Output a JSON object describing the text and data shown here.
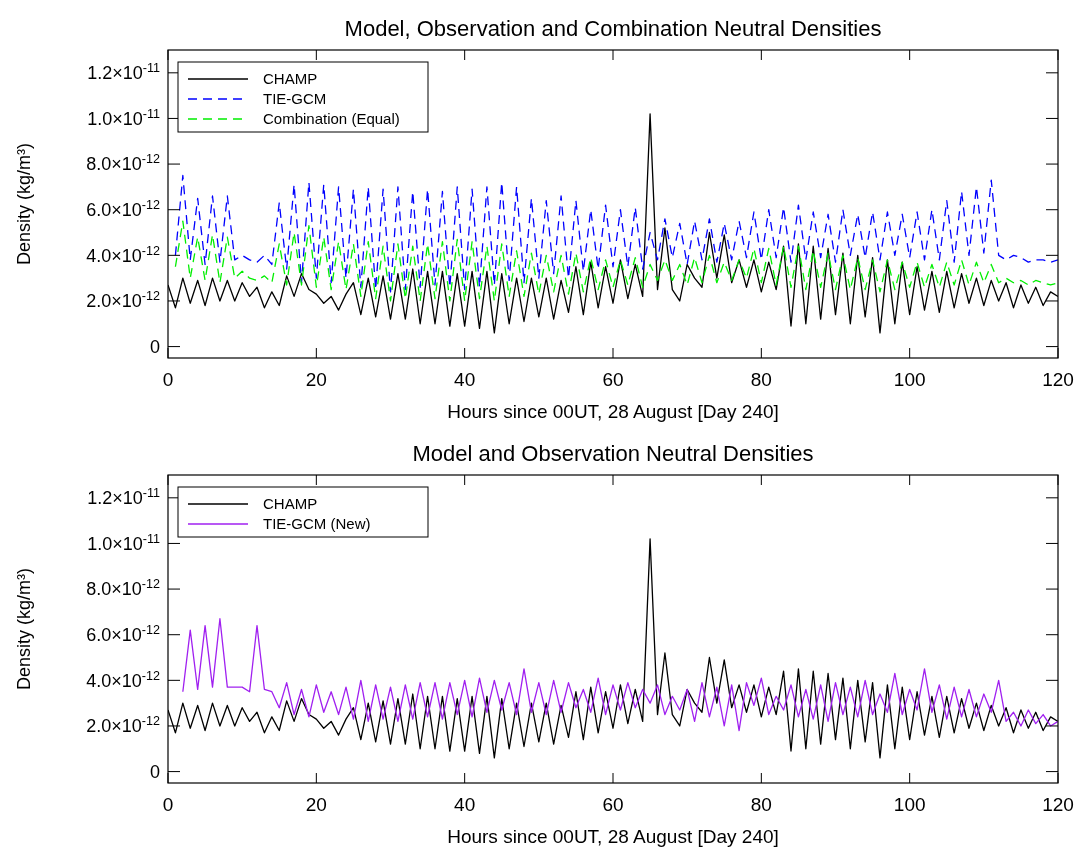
{
  "chart_data": [
    {
      "type": "line",
      "title": "Model, Observation and Combination Neutral Densities",
      "xlabel": "Hours since 00UT, 28 August [Day 240]",
      "ylabel": "Density (kg/m³)",
      "legend": "top left",
      "grid": false,
      "xlim": [
        0,
        120
      ],
      "xticks": [
        0,
        20,
        40,
        60,
        80,
        100,
        120
      ],
      "ylim": [
        -5e-13,
        1.3e-11
      ],
      "yticks": [
        {
          "value": 0,
          "label": "0"
        },
        {
          "value": 2e-12,
          "label": "2.0×10$^{-12}$"
        },
        {
          "value": 4e-12,
          "label": "4.0×10$^{-12}$"
        },
        {
          "value": 6e-12,
          "label": "6.0×10$^{-12}$"
        },
        {
          "value": 8e-12,
          "label": "8.0×10$^{-12}$"
        },
        {
          "value": 1e-11,
          "label": "1.0×10$^{-11}$"
        },
        {
          "value": 1.2e-11,
          "label": "1.2×10$^{-11}$"
        }
      ],
      "x": [
        0,
        1,
        2,
        3,
        4,
        5,
        6,
        7,
        8,
        9,
        10,
        11,
        12,
        13,
        14,
        15,
        16,
        17,
        18,
        19,
        20,
        21,
        22,
        23,
        24,
        25,
        26,
        27,
        28,
        29,
        30,
        31,
        32,
        33,
        34,
        35,
        36,
        37,
        38,
        39,
        40,
        41,
        42,
        43,
        44,
        45,
        46,
        47,
        48,
        49,
        50,
        51,
        52,
        53,
        54,
        55,
        56,
        57,
        58,
        59,
        60,
        61,
        62,
        63,
        64,
        65,
        66,
        67,
        68,
        69,
        70,
        71,
        72,
        73,
        74,
        75,
        76,
        77,
        78,
        79,
        80,
        81,
        82,
        83,
        84,
        85,
        86,
        87,
        88,
        89,
        90,
        91,
        92,
        93,
        94,
        95,
        96,
        97,
        98,
        99,
        100,
        101,
        102,
        103,
        104,
        105,
        106,
        107,
        108,
        109,
        110,
        111,
        112,
        113,
        114,
        115,
        116,
        117,
        118,
        119,
        120
      ],
      "series": [
        {
          "name": "CHAMP",
          "color": "#000000",
          "line_style": "solid",
          "values": [
            2.7e-12,
            1.7e-12,
            3e-12,
            1.9e-12,
            2.9e-12,
            1.8e-12,
            3e-12,
            2e-12,
            2.9e-12,
            2e-12,
            2.8e-12,
            2.2e-12,
            2.6e-12,
            1.7e-12,
            2.4e-12,
            1.8e-12,
            3.1e-12,
            2.2e-12,
            3.2e-12,
            2.5e-12,
            2.3e-12,
            1.9e-12,
            2.2e-12,
            1.6e-12,
            2.3e-12,
            2.8e-12,
            1.4e-12,
            3e-12,
            1.3e-12,
            3.1e-12,
            1.2e-12,
            3.2e-12,
            1.2e-12,
            3.4e-12,
            1e-12,
            3.3e-12,
            1e-12,
            3.3e-12,
            9e-13,
            3.2e-12,
            9e-13,
            3.3e-12,
            8e-13,
            3.3e-12,
            6e-13,
            3.2e-12,
            1e-12,
            3e-12,
            1.1e-12,
            3e-12,
            1.3e-12,
            3e-12,
            1.2e-12,
            2.9e-12,
            1.5e-12,
            3.5e-12,
            1.4e-12,
            3.7e-12,
            1.7e-12,
            3.5e-12,
            1.9e-12,
            3.8e-12,
            2.1e-12,
            3.6e-12,
            2.2e-12,
            1.02e-11,
            2.5e-12,
            5.2e-12,
            2.5e-12,
            2e-12,
            3.6e-12,
            3e-12,
            2.6e-12,
            5e-12,
            3e-12,
            4.9e-12,
            2.8e-12,
            3.8e-12,
            2.6e-12,
            3.8e-12,
            2.4e-12,
            3.7e-12,
            2.5e-12,
            4.4e-12,
            9e-13,
            4.5e-12,
            1e-12,
            4.4e-12,
            1.2e-12,
            4.3e-12,
            1.4e-12,
            4.1e-12,
            1e-12,
            4e-12,
            1.3e-12,
            3.9e-12,
            6e-13,
            3.8e-12,
            1e-12,
            3.7e-12,
            1.4e-12,
            3.5e-12,
            1.6e-12,
            3.3e-12,
            1.5e-12,
            3.3e-12,
            1.7e-12,
            3.2e-12,
            1.9e-12,
            3e-12,
            1.8e-12,
            2.9e-12,
            2e-12,
            2.8e-12,
            1.7e-12,
            2.7e-12,
            1.9e-12,
            2.6e-12,
            1.8e-12,
            2.4e-12,
            2.2e-12
          ]
        },
        {
          "name": "TIE-GCM",
          "color": "#0000ff",
          "line_style": "dashed",
          "values": [
            null,
            4e-12,
            7.5e-12,
            3.8e-12,
            6.5e-12,
            3.6e-12,
            6.6e-12,
            3.7e-12,
            6.6e-12,
            3.8e-12,
            4e-12,
            3.8e-12,
            3.7e-12,
            4e-12,
            3.6e-12,
            6.3e-12,
            3.4e-12,
            7.1e-12,
            2.8e-12,
            7.2e-12,
            3e-12,
            7.1e-12,
            2.8e-12,
            7e-12,
            3e-12,
            6.9e-12,
            2.6e-12,
            7e-12,
            2.5e-12,
            6.9e-12,
            2.4e-12,
            7e-12,
            2.5e-12,
            6.8e-12,
            2.6e-12,
            6.9e-12,
            2.7e-12,
            6.8e-12,
            2.6e-12,
            7e-12,
            2.5e-12,
            6.9e-12,
            2.6e-12,
            7e-12,
            2.7e-12,
            7.2e-12,
            2.9e-12,
            7e-12,
            2.8e-12,
            6.5e-12,
            3e-12,
            6.4e-12,
            3.2e-12,
            6.6e-12,
            3e-12,
            6.4e-12,
            3.3e-12,
            6e-12,
            3.4e-12,
            6.2e-12,
            3.5e-12,
            6e-12,
            3.5e-12,
            6.1e-12,
            3.4e-12,
            5e-12,
            3.8e-12,
            5.6e-12,
            3.9e-12,
            5.4e-12,
            3.6e-12,
            5.5e-12,
            3.8e-12,
            5.6e-12,
            3.7e-12,
            5.4e-12,
            3.8e-12,
            5.5e-12,
            3.9e-12,
            5.9e-12,
            3.8e-12,
            6e-12,
            3.9e-12,
            6.1e-12,
            3.7e-12,
            6.2e-12,
            3.8e-12,
            5.9e-12,
            3.9e-12,
            5.8e-12,
            3.7e-12,
            6e-12,
            4e-12,
            5.8e-12,
            3.9e-12,
            5.9e-12,
            3.8e-12,
            5.9e-12,
            4e-12,
            5.8e-12,
            3.9e-12,
            5.9e-12,
            3.8e-12,
            6e-12,
            3.8e-12,
            6.4e-12,
            3.7e-12,
            6.8e-12,
            4e-12,
            7e-12,
            4.1e-12,
            7.3e-12,
            4e-12,
            3.8e-12,
            4e-12,
            3.9e-12,
            3.7e-12,
            3.8e-12,
            3.8e-12,
            3.7e-12,
            3.8e-12
          ]
        },
        {
          "name": "Combination (Equal)",
          "color": "#00ee00",
          "line_style": "dashed",
          "values": [
            null,
            3.5e-12,
            5.5e-12,
            3e-12,
            4.8e-12,
            2.9e-12,
            4.9e-12,
            2.8e-12,
            4.8e-12,
            3e-12,
            3.3e-12,
            3e-12,
            2.9e-12,
            3.1e-12,
            2.8e-12,
            4.5e-12,
            2.7e-12,
            5e-12,
            2.7e-12,
            5.3e-12,
            2.6e-12,
            4.8e-12,
            2.5e-12,
            4.6e-12,
            2.5e-12,
            4.5e-12,
            2.2e-12,
            4.6e-12,
            2.1e-12,
            4.4e-12,
            2e-12,
            4.5e-12,
            2.1e-12,
            4.4e-12,
            2e-12,
            4.5e-12,
            2.1e-12,
            4.6e-12,
            2e-12,
            4.7e-12,
            2e-12,
            4.6e-12,
            2.1e-12,
            4.4e-12,
            2e-12,
            4.5e-12,
            2.2e-12,
            4.2e-12,
            2.2e-12,
            4.1e-12,
            2.3e-12,
            4e-12,
            2.4e-12,
            4e-12,
            2.3e-12,
            4.1e-12,
            2.4e-12,
            3.9e-12,
            2.5e-12,
            3.8e-12,
            2.6e-12,
            3.8e-12,
            2.7e-12,
            3.9e-12,
            2.6e-12,
            3.6e-12,
            2.9e-12,
            3.8e-12,
            2.9e-12,
            3.6e-12,
            2.7e-12,
            3.9e-12,
            2.8e-12,
            4e-12,
            2.8e-12,
            3.7e-12,
            2.9e-12,
            3.8e-12,
            3e-12,
            4.3e-12,
            2.8e-12,
            4.3e-12,
            2.7e-12,
            4.4e-12,
            2.6e-12,
            4.4e-12,
            2.5e-12,
            4.2e-12,
            2.6e-12,
            4.1e-12,
            2.5e-12,
            4e-12,
            2.5e-12,
            3.9e-12,
            2.5e-12,
            3.8e-12,
            2.4e-12,
            3.8e-12,
            2.5e-12,
            3.7e-12,
            2.6e-12,
            3.7e-12,
            2.6e-12,
            3.6e-12,
            2.6e-12,
            3.7e-12,
            2.7e-12,
            3.8e-12,
            2.7e-12,
            3.7e-12,
            2.8e-12,
            3.6e-12,
            2.8e-12,
            3e-12,
            2.8e-12,
            2.9e-12,
            2.7e-12,
            2.9e-12,
            2.8e-12,
            2.7e-12,
            2.8e-12
          ]
        }
      ]
    },
    {
      "type": "line",
      "title": "Model and Observation Neutral Densities",
      "xlabel": "Hours since 00UT, 28 August [Day 240]",
      "ylabel": "Density (kg/m³)",
      "legend": "top left",
      "grid": false,
      "xlim": [
        0,
        120
      ],
      "xticks": [
        0,
        20,
        40,
        60,
        80,
        100,
        120
      ],
      "ylim": [
        -5e-13,
        1.3e-11
      ],
      "yticks": [
        {
          "value": 0,
          "label": "0"
        },
        {
          "value": 2e-12,
          "label": "2.0×10$^{-12}$"
        },
        {
          "value": 4e-12,
          "label": "4.0×10$^{-12}$"
        },
        {
          "value": 6e-12,
          "label": "6.0×10$^{-12}$"
        },
        {
          "value": 8e-12,
          "label": "8.0×10$^{-12}$"
        },
        {
          "value": 1e-11,
          "label": "1.0×10$^{-11}$"
        },
        {
          "value": 1.2e-11,
          "label": "1.2×10$^{-11}$"
        }
      ],
      "x": [
        0,
        1,
        2,
        3,
        4,
        5,
        6,
        7,
        8,
        9,
        10,
        11,
        12,
        13,
        14,
        15,
        16,
        17,
        18,
        19,
        20,
        21,
        22,
        23,
        24,
        25,
        26,
        27,
        28,
        29,
        30,
        31,
        32,
        33,
        34,
        35,
        36,
        37,
        38,
        39,
        40,
        41,
        42,
        43,
        44,
        45,
        46,
        47,
        48,
        49,
        50,
        51,
        52,
        53,
        54,
        55,
        56,
        57,
        58,
        59,
        60,
        61,
        62,
        63,
        64,
        65,
        66,
        67,
        68,
        69,
        70,
        71,
        72,
        73,
        74,
        75,
        76,
        77,
        78,
        79,
        80,
        81,
        82,
        83,
        84,
        85,
        86,
        87,
        88,
        89,
        90,
        91,
        92,
        93,
        94,
        95,
        96,
        97,
        98,
        99,
        100,
        101,
        102,
        103,
        104,
        105,
        106,
        107,
        108,
        109,
        110,
        111,
        112,
        113,
        114,
        115,
        116,
        117,
        118,
        119,
        120
      ],
      "series": [
        {
          "name": "CHAMP",
          "color": "#000000",
          "line_style": "solid",
          "values": [
            2.7e-12,
            1.7e-12,
            3e-12,
            1.9e-12,
            2.9e-12,
            1.8e-12,
            3e-12,
            2e-12,
            2.9e-12,
            2e-12,
            2.8e-12,
            2.2e-12,
            2.6e-12,
            1.7e-12,
            2.4e-12,
            1.8e-12,
            3.1e-12,
            2.2e-12,
            3.2e-12,
            2.5e-12,
            2.3e-12,
            1.9e-12,
            2.2e-12,
            1.6e-12,
            2.3e-12,
            2.8e-12,
            1.4e-12,
            3e-12,
            1.3e-12,
            3.1e-12,
            1.2e-12,
            3.2e-12,
            1.2e-12,
            3.4e-12,
            1e-12,
            3.3e-12,
            1e-12,
            3.3e-12,
            9e-13,
            3.2e-12,
            9e-13,
            3.3e-12,
            8e-13,
            3.3e-12,
            6e-13,
            3.2e-12,
            1e-12,
            3e-12,
            1.1e-12,
            3e-12,
            1.3e-12,
            3e-12,
            1.2e-12,
            2.9e-12,
            1.5e-12,
            3.5e-12,
            1.4e-12,
            3.7e-12,
            1.7e-12,
            3.5e-12,
            1.9e-12,
            3.8e-12,
            2.1e-12,
            3.6e-12,
            2.2e-12,
            1.02e-11,
            2.5e-12,
            5.2e-12,
            2.5e-12,
            2e-12,
            3.6e-12,
            3e-12,
            2.6e-12,
            5e-12,
            3e-12,
            4.9e-12,
            2.8e-12,
            3.8e-12,
            2.6e-12,
            3.8e-12,
            2.4e-12,
            3.7e-12,
            2.5e-12,
            4.4e-12,
            9e-13,
            4.5e-12,
            1e-12,
            4.4e-12,
            1.2e-12,
            4.3e-12,
            1.4e-12,
            4.1e-12,
            1e-12,
            4e-12,
            1.3e-12,
            3.9e-12,
            6e-13,
            3.8e-12,
            1e-12,
            3.7e-12,
            1.4e-12,
            3.5e-12,
            1.6e-12,
            3.3e-12,
            1.5e-12,
            3.3e-12,
            1.7e-12,
            3.2e-12,
            1.9e-12,
            3e-12,
            1.8e-12,
            2.9e-12,
            2e-12,
            2.8e-12,
            1.7e-12,
            2.7e-12,
            1.9e-12,
            2.6e-12,
            1.8e-12,
            2.4e-12,
            2.2e-12
          ]
        },
        {
          "name": "TIE-GCM (New)",
          "color": "#a020f0",
          "line_style": "solid",
          "values": [
            null,
            null,
            3.5e-12,
            6.2e-12,
            3.6e-12,
            6.4e-12,
            3.7e-12,
            6.7e-12,
            3.7e-12,
            3.7e-12,
            3.7e-12,
            3.5e-12,
            6.4e-12,
            3.6e-12,
            3.5e-12,
            2.8e-12,
            3.9e-12,
            2.5e-12,
            3.6e-12,
            2.4e-12,
            3.8e-12,
            2.6e-12,
            3.5e-12,
            2.5e-12,
            3.7e-12,
            2.3e-12,
            4e-12,
            2.2e-12,
            3.8e-12,
            2.3e-12,
            3.7e-12,
            2.2e-12,
            3.8e-12,
            2.3e-12,
            3.9e-12,
            2.4e-12,
            3.9e-12,
            2.3e-12,
            3.9e-12,
            2.5e-12,
            4e-12,
            2.4e-12,
            4.1e-12,
            2.6e-12,
            4e-12,
            2.7e-12,
            3.9e-12,
            2.5e-12,
            4.5e-12,
            2.6e-12,
            3.9e-12,
            2.5e-12,
            4e-12,
            2.6e-12,
            3.9e-12,
            2.8e-12,
            3.6e-12,
            2.6e-12,
            4.1e-12,
            2.5e-12,
            3.8e-12,
            2.7e-12,
            3.9e-12,
            2.8e-12,
            3.6e-12,
            3e-12,
            3.8e-12,
            2.5e-12,
            3.3e-12,
            2.7e-12,
            3.6e-12,
            2.2e-12,
            3.9e-12,
            2.4e-12,
            3.7e-12,
            2e-12,
            3.8e-12,
            1.8e-12,
            3.9e-12,
            2.9e-12,
            4.1e-12,
            2.5e-12,
            3.3e-12,
            2.7e-12,
            3.8e-12,
            2.4e-12,
            3.6e-12,
            2.3e-12,
            3.8e-12,
            2.2e-12,
            3.9e-12,
            2.5e-12,
            3.7e-12,
            2.4e-12,
            4e-12,
            2.5e-12,
            3.4e-12,
            2.6e-12,
            4.3e-12,
            2.5e-12,
            3.6e-12,
            2.7e-12,
            4.5e-12,
            2.6e-12,
            3.8e-12,
            2.3e-12,
            3.7e-12,
            2.4e-12,
            3.6e-12,
            2.4e-12,
            3.4e-12,
            2.6e-12,
            4e-12,
            2.2e-12,
            2.6e-12,
            2e-12,
            2.7e-12,
            2.1e-12,
            2.5e-12,
            2e-12,
            2.2e-12
          ]
        }
      ]
    }
  ]
}
